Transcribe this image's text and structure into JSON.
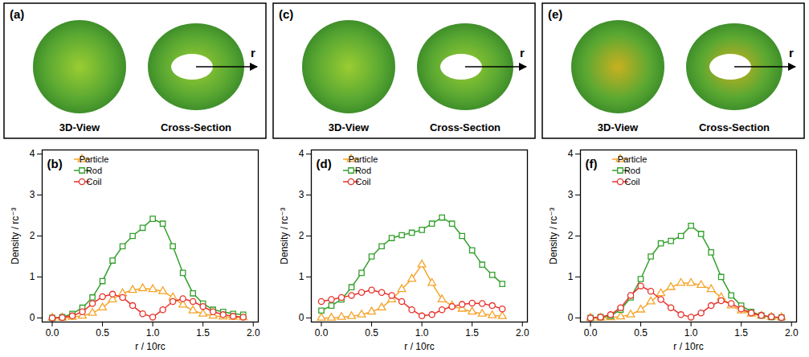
{
  "images": [
    {
      "label": "(a)",
      "views": [
        "3D-View",
        "Cross-Section"
      ],
      "arrow": "r"
    },
    {
      "label": "(c)",
      "views": [
        "3D-View",
        "Cross-Section"
      ],
      "arrow": "r"
    },
    {
      "label": "(e)",
      "views": [
        "3D-View",
        "Cross-Section"
      ],
      "arrow": "r"
    }
  ],
  "chart_data": [
    {
      "type": "line",
      "label": "(b)",
      "x_label": "r / 10rc",
      "y_label": "Density / rc⁻³",
      "x": [
        0,
        0.1,
        0.2,
        0.3,
        0.4,
        0.5,
        0.6,
        0.7,
        0.8,
        0.9,
        1.0,
        1.1,
        1.2,
        1.3,
        1.4,
        1.5,
        1.6,
        1.7,
        1.8,
        1.9
      ],
      "series": [
        {
          "name": "Particle",
          "color": "#f5a42a",
          "marker": "triangle",
          "values": [
            0,
            0,
            0.02,
            0.05,
            0.12,
            0.25,
            0.45,
            0.6,
            0.68,
            0.72,
            0.7,
            0.65,
            0.5,
            0.32,
            0.18,
            0.1,
            0.05,
            0.03,
            0.02,
            0.01
          ]
        },
        {
          "name": "Rod",
          "color": "#33a02c",
          "marker": "square",
          "values": [
            0,
            0.02,
            0.1,
            0.25,
            0.5,
            0.9,
            1.4,
            1.75,
            2.0,
            2.2,
            2.42,
            2.3,
            1.75,
            1.1,
            0.6,
            0.35,
            0.2,
            0.15,
            0.1,
            0.08
          ]
        },
        {
          "name": "Coil",
          "color": "#e8312a",
          "marker": "circle",
          "values": [
            0,
            0.01,
            0.05,
            0.15,
            0.35,
            0.52,
            0.58,
            0.5,
            0.3,
            0.1,
            0.02,
            0.2,
            0.4,
            0.47,
            0.4,
            0.28,
            0.15,
            0.08,
            0.04,
            0.02
          ]
        }
      ],
      "xlim": [
        -0.1,
        2.05
      ],
      "xticks": [
        {
          "value": 0,
          "label": "0.0"
        },
        {
          "value": 0.5,
          "label": "0.5"
        },
        {
          "value": 1,
          "label": "1.0"
        },
        {
          "value": 1.5,
          "label": "1.5"
        },
        {
          "value": 2,
          "label": "2.0"
        }
      ],
      "ylim": [
        -0.1,
        4.1
      ],
      "yticks": [
        0,
        1,
        2,
        3,
        4
      ],
      "legend": "upper left"
    },
    {
      "type": "line",
      "label": "(d)",
      "x_label": "r / 10rc",
      "y_label": "Density / rc⁻³",
      "x": [
        0,
        0.1,
        0.2,
        0.3,
        0.4,
        0.5,
        0.6,
        0.7,
        0.8,
        0.9,
        1.0,
        1.1,
        1.2,
        1.3,
        1.4,
        1.5,
        1.6,
        1.7,
        1.8
      ],
      "series": [
        {
          "name": "Particle",
          "color": "#f5a42a",
          "marker": "triangle",
          "values": [
            0,
            0,
            0.02,
            0.04,
            0.08,
            0.15,
            0.25,
            0.45,
            0.7,
            0.95,
            1.3,
            0.85,
            0.45,
            0.3,
            0.22,
            0.15,
            0.1,
            0.06,
            0.04
          ]
        },
        {
          "name": "Rod",
          "color": "#33a02c",
          "marker": "square",
          "values": [
            0.18,
            0.3,
            0.45,
            0.75,
            1.1,
            1.5,
            1.75,
            1.95,
            2.02,
            2.08,
            2.15,
            2.3,
            2.45,
            2.3,
            2.0,
            1.65,
            1.3,
            1.05,
            0.83
          ]
        },
        {
          "name": "Coil",
          "color": "#e8312a",
          "marker": "circle",
          "values": [
            0.4,
            0.45,
            0.5,
            0.55,
            0.62,
            0.68,
            0.62,
            0.55,
            0.4,
            0.2,
            0.05,
            0.08,
            0.2,
            0.28,
            0.33,
            0.36,
            0.35,
            0.3,
            0.22
          ]
        }
      ],
      "xlim": [
        -0.1,
        2.05
      ],
      "xticks": [
        {
          "value": 0,
          "label": "0.0"
        },
        {
          "value": 0.5,
          "label": "0.5"
        },
        {
          "value": 1,
          "label": "1.0"
        },
        {
          "value": 1.5,
          "label": "1.5"
        },
        {
          "value": 2,
          "label": "2.0"
        }
      ],
      "ylim": [
        -0.1,
        4.1
      ],
      "yticks": [
        0,
        1,
        2,
        3,
        4
      ],
      "legend": "upper left"
    },
    {
      "type": "line",
      "label": "(f)",
      "x_label": "r / 10rc",
      "y_label": "Density / rc⁻³",
      "x": [
        0,
        0.1,
        0.2,
        0.3,
        0.4,
        0.5,
        0.6,
        0.7,
        0.8,
        0.9,
        1.0,
        1.1,
        1.2,
        1.3,
        1.4,
        1.5,
        1.6,
        1.7,
        1.8,
        1.9
      ],
      "series": [
        {
          "name": "Particle",
          "color": "#f5a42a",
          "marker": "triangle",
          "values": [
            0,
            0,
            0.01,
            0.03,
            0.08,
            0.2,
            0.4,
            0.6,
            0.75,
            0.85,
            0.85,
            0.8,
            0.7,
            0.5,
            0.3,
            0.18,
            0.1,
            0.05,
            0.02,
            0.01
          ]
        },
        {
          "name": "Rod",
          "color": "#33a02c",
          "marker": "square",
          "values": [
            0,
            0.02,
            0.05,
            0.2,
            0.5,
            0.95,
            1.5,
            1.82,
            1.88,
            2.0,
            2.25,
            2.05,
            1.6,
            1.0,
            0.55,
            0.3,
            0.15,
            0.06,
            0.02,
            0.01
          ]
        },
        {
          "name": "Coil",
          "color": "#e8312a",
          "marker": "circle",
          "values": [
            0,
            0.02,
            0.08,
            0.25,
            0.55,
            0.78,
            0.65,
            0.45,
            0.25,
            0.08,
            0.02,
            0.12,
            0.3,
            0.42,
            0.35,
            0.22,
            0.12,
            0.06,
            0.03,
            0.01
          ]
        }
      ],
      "xlim": [
        -0.1,
        2.05
      ],
      "xticks": [
        {
          "value": 0,
          "label": "0.0"
        },
        {
          "value": 0.5,
          "label": "0.5"
        },
        {
          "value": 1,
          "label": "1.0"
        },
        {
          "value": 1.5,
          "label": "1.5"
        },
        {
          "value": 2,
          "label": "2.0"
        }
      ],
      "ylim": [
        -0.1,
        4.1
      ],
      "yticks": [
        0,
        1,
        2,
        3,
        4
      ],
      "legend": "upper left"
    }
  ]
}
